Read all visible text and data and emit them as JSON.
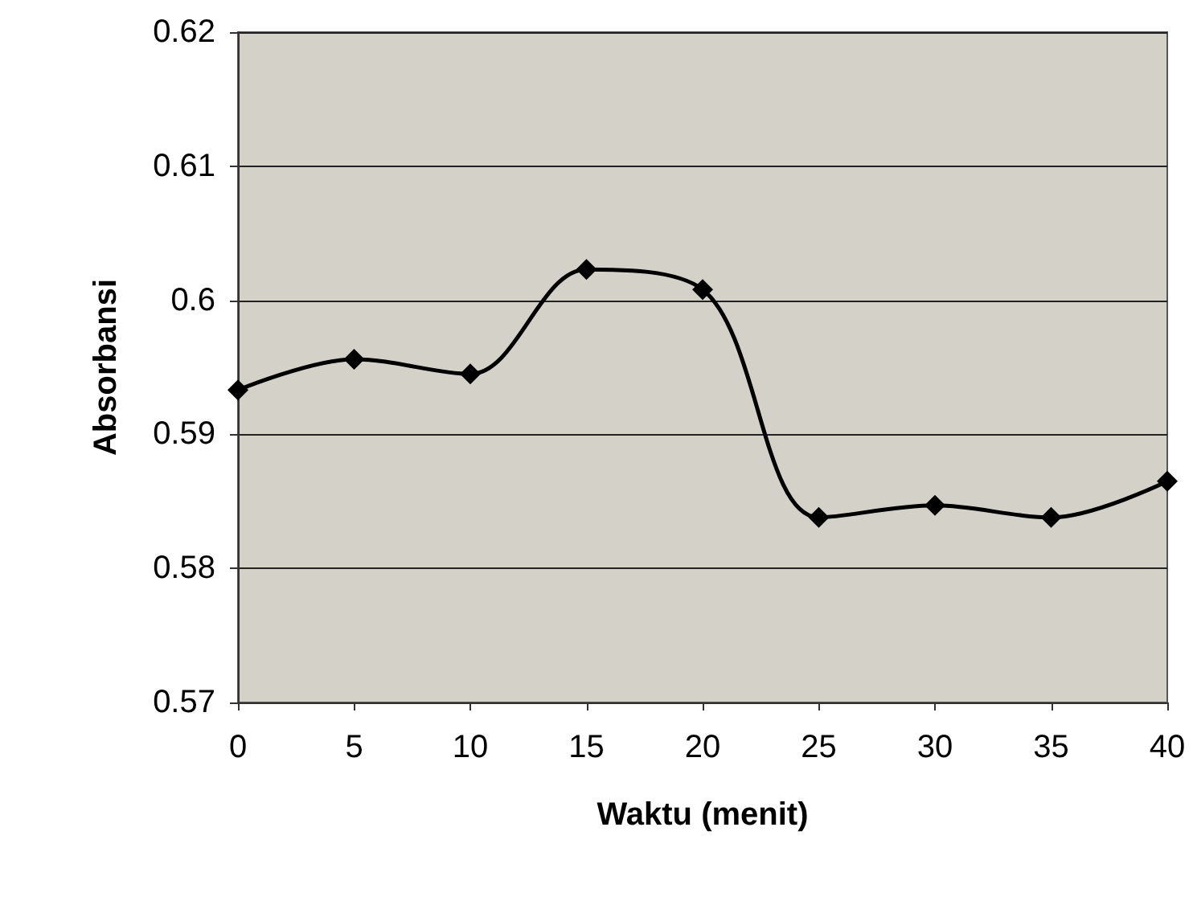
{
  "chart_data": {
    "type": "line",
    "xlabel": "Waktu (menit)",
    "ylabel": "Absorbansi",
    "categories": [
      "0",
      "5",
      "10",
      "15",
      "20",
      "25",
      "30",
      "35",
      "40"
    ],
    "series": [
      {
        "color": "#000000",
        "values": [
          0.5933,
          0.5956,
          0.5945,
          0.6023,
          0.6008,
          0.5838,
          0.5847,
          0.5838,
          0.5865
        ]
      }
    ],
    "ylim": [
      0.57,
      0.62
    ],
    "yticks": [
      0.57,
      0.58,
      0.59,
      0.6,
      0.61,
      0.62
    ],
    "grid": "y",
    "marker": "diamond",
    "line_style": "solid"
  }
}
